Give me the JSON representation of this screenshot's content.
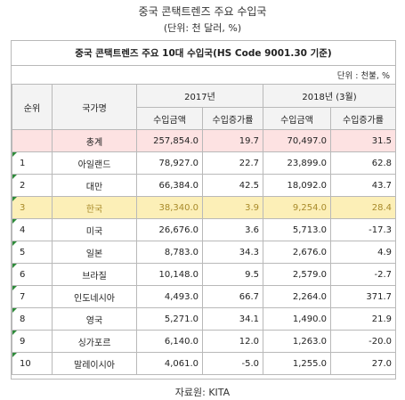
{
  "title": "중국 콘택트렌즈 주요 수입국",
  "subtitle": "(단위: 천 달러, %)",
  "table_title": "중국 콘택트렌즈 주요 10대 수입국(HS Code 9001.30 기준)",
  "unit_note": "단위 : 천불, %",
  "headers": {
    "rank": "순위",
    "country": "국가명",
    "year1": "2017년",
    "year2": "2018년 (3월)",
    "import_amount_1": "수입금액",
    "growth_1": "수입증가률",
    "import_amount_2": "수입금액",
    "growth_2": "수입증가률"
  },
  "rows": [
    {
      "rank": "",
      "country": "총계",
      "a2017": "257,854.0",
      "g2017": "19.7",
      "a2018": "70,497.0",
      "g2018": "31.5"
    },
    {
      "rank": "1",
      "country": "아일랜드",
      "a2017": "78,927.0",
      "g2017": "22.7",
      "a2018": "23,899.0",
      "g2018": "62.8"
    },
    {
      "rank": "2",
      "country": "대만",
      "a2017": "66,384.0",
      "g2017": "42.5",
      "a2018": "18,092.0",
      "g2018": "43.7"
    },
    {
      "rank": "3",
      "country": "한국",
      "a2017": "38,340.0",
      "g2017": "3.9",
      "a2018": "9,254.0",
      "g2018": "28.4"
    },
    {
      "rank": "4",
      "country": "미국",
      "a2017": "26,676.0",
      "g2017": "3.6",
      "a2018": "5,713.0",
      "g2018": "-17.3"
    },
    {
      "rank": "5",
      "country": "일본",
      "a2017": "8,783.0",
      "g2017": "34.3",
      "a2018": "2,676.0",
      "g2018": "4.9"
    },
    {
      "rank": "6",
      "country": "브라질",
      "a2017": "10,148.0",
      "g2017": "9.5",
      "a2018": "2,579.0",
      "g2018": "-2.7"
    },
    {
      "rank": "7",
      "country": "인도네시아",
      "a2017": "4,493.0",
      "g2017": "66.7",
      "a2018": "2,264.0",
      "g2018": "371.7"
    },
    {
      "rank": "8",
      "country": "영국",
      "a2017": "5,271.0",
      "g2017": "34.1",
      "a2018": "1,490.0",
      "g2018": "21.9"
    },
    {
      "rank": "9",
      "country": "싱가포르",
      "a2017": "6,140.0",
      "g2017": "12.0",
      "a2018": "1,263.0",
      "g2018": "-20.0"
    },
    {
      "rank": "10",
      "country": "말레이시아",
      "a2017": "4,061.0",
      "g2017": "-5.0",
      "a2018": "1,255.0",
      "g2018": "27.0"
    }
  ],
  "source": "자료원: KITA",
  "colors": {
    "total_row": "#fde2e2",
    "highlight_row": "#fcefb7",
    "highlight_text": "#a88a2a",
    "corner_marker": "#2e8b3a"
  }
}
